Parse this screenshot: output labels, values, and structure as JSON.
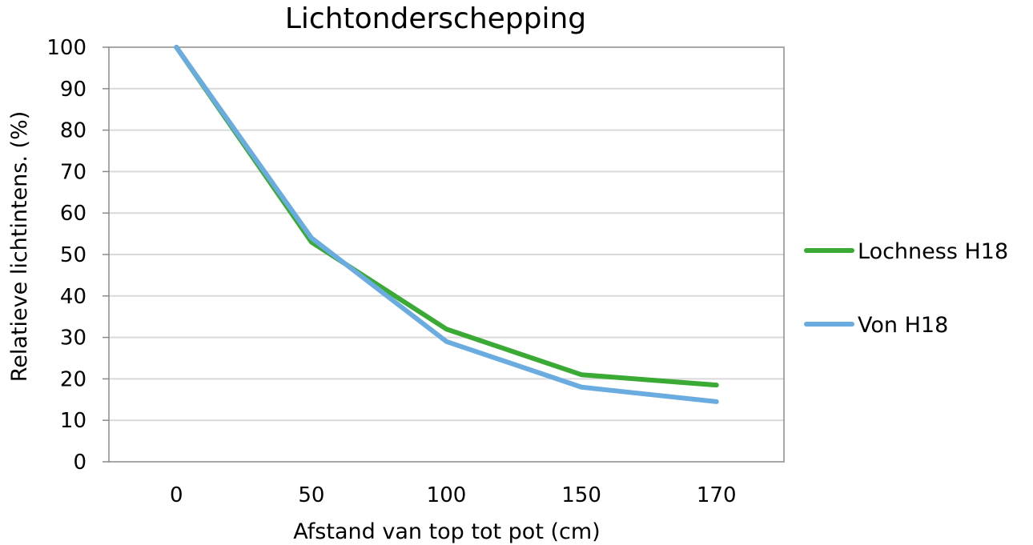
{
  "chart_data": {
    "type": "line",
    "title": "Lichtonderschepping",
    "xlabel": "Afstand van top tot pot (cm)",
    "ylabel": "Relatieve lichtintens. (%)",
    "categories": [
      "0",
      "50",
      "100",
      "150",
      "170"
    ],
    "ylim": [
      0,
      100
    ],
    "yticks": [
      "0",
      "10",
      "20",
      "30",
      "40",
      "50",
      "60",
      "70",
      "80",
      "90",
      "100"
    ],
    "grid": true,
    "legend_position": "right",
    "series": [
      {
        "name": "Lochness H18",
        "color": "#3aaa35",
        "values": [
          100,
          53,
          32,
          21,
          18.5
        ]
      },
      {
        "name": "Von H18",
        "color": "#6aabe0",
        "values": [
          100,
          54,
          29,
          18,
          14.5
        ]
      }
    ]
  }
}
